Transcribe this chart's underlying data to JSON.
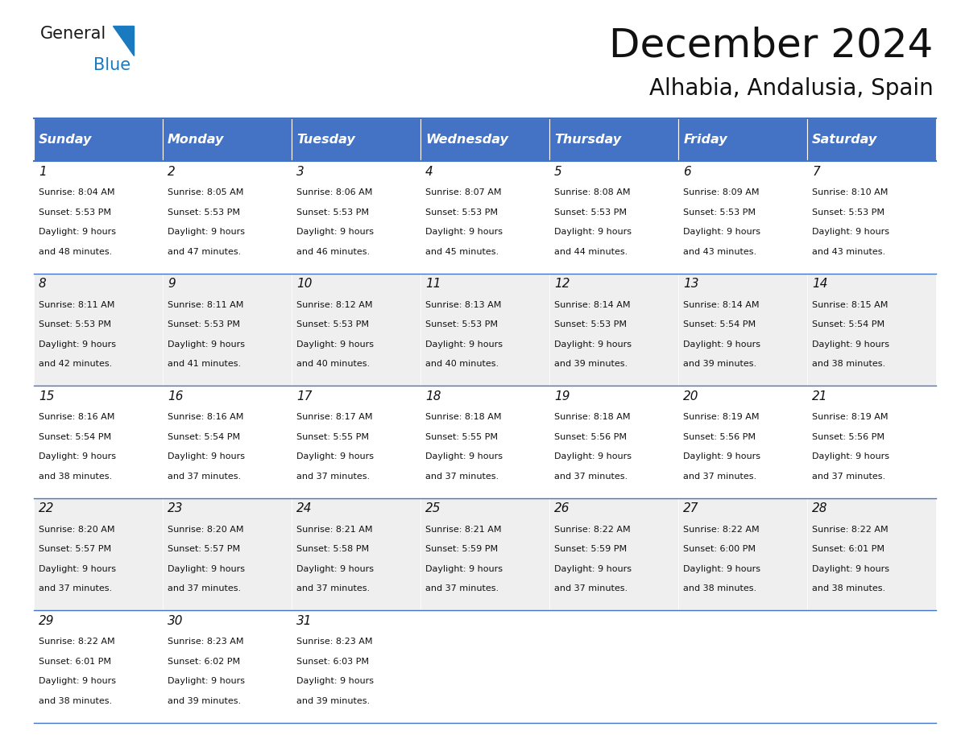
{
  "title": "December 2024",
  "subtitle": "Alhabia, Andalusia, Spain",
  "header_bg_color": "#4472C4",
  "header_text_color": "#FFFFFF",
  "border_color": "#4472C4",
  "day_headers": [
    "Sunday",
    "Monday",
    "Tuesday",
    "Wednesday",
    "Thursday",
    "Friday",
    "Saturday"
  ],
  "days_data": [
    {
      "day": 1,
      "col": 0,
      "row": 0,
      "sunrise": "8:04 AM",
      "sunset": "5:53 PM",
      "daylight": "9 hours and 48 minutes."
    },
    {
      "day": 2,
      "col": 1,
      "row": 0,
      "sunrise": "8:05 AM",
      "sunset": "5:53 PM",
      "daylight": "9 hours and 47 minutes."
    },
    {
      "day": 3,
      "col": 2,
      "row": 0,
      "sunrise": "8:06 AM",
      "sunset": "5:53 PM",
      "daylight": "9 hours and 46 minutes."
    },
    {
      "day": 4,
      "col": 3,
      "row": 0,
      "sunrise": "8:07 AM",
      "sunset": "5:53 PM",
      "daylight": "9 hours and 45 minutes."
    },
    {
      "day": 5,
      "col": 4,
      "row": 0,
      "sunrise": "8:08 AM",
      "sunset": "5:53 PM",
      "daylight": "9 hours and 44 minutes."
    },
    {
      "day": 6,
      "col": 5,
      "row": 0,
      "sunrise": "8:09 AM",
      "sunset": "5:53 PM",
      "daylight": "9 hours and 43 minutes."
    },
    {
      "day": 7,
      "col": 6,
      "row": 0,
      "sunrise": "8:10 AM",
      "sunset": "5:53 PM",
      "daylight": "9 hours and 43 minutes."
    },
    {
      "day": 8,
      "col": 0,
      "row": 1,
      "sunrise": "8:11 AM",
      "sunset": "5:53 PM",
      "daylight": "9 hours and 42 minutes."
    },
    {
      "day": 9,
      "col": 1,
      "row": 1,
      "sunrise": "8:11 AM",
      "sunset": "5:53 PM",
      "daylight": "9 hours and 41 minutes."
    },
    {
      "day": 10,
      "col": 2,
      "row": 1,
      "sunrise": "8:12 AM",
      "sunset": "5:53 PM",
      "daylight": "9 hours and 40 minutes."
    },
    {
      "day": 11,
      "col": 3,
      "row": 1,
      "sunrise": "8:13 AM",
      "sunset": "5:53 PM",
      "daylight": "9 hours and 40 minutes."
    },
    {
      "day": 12,
      "col": 4,
      "row": 1,
      "sunrise": "8:14 AM",
      "sunset": "5:53 PM",
      "daylight": "9 hours and 39 minutes."
    },
    {
      "day": 13,
      "col": 5,
      "row": 1,
      "sunrise": "8:14 AM",
      "sunset": "5:54 PM",
      "daylight": "9 hours and 39 minutes."
    },
    {
      "day": 14,
      "col": 6,
      "row": 1,
      "sunrise": "8:15 AM",
      "sunset": "5:54 PM",
      "daylight": "9 hours and 38 minutes."
    },
    {
      "day": 15,
      "col": 0,
      "row": 2,
      "sunrise": "8:16 AM",
      "sunset": "5:54 PM",
      "daylight": "9 hours and 38 minutes."
    },
    {
      "day": 16,
      "col": 1,
      "row": 2,
      "sunrise": "8:16 AM",
      "sunset": "5:54 PM",
      "daylight": "9 hours and 37 minutes."
    },
    {
      "day": 17,
      "col": 2,
      "row": 2,
      "sunrise": "8:17 AM",
      "sunset": "5:55 PM",
      "daylight": "9 hours and 37 minutes."
    },
    {
      "day": 18,
      "col": 3,
      "row": 2,
      "sunrise": "8:18 AM",
      "sunset": "5:55 PM",
      "daylight": "9 hours and 37 minutes."
    },
    {
      "day": 19,
      "col": 4,
      "row": 2,
      "sunrise": "8:18 AM",
      "sunset": "5:56 PM",
      "daylight": "9 hours and 37 minutes."
    },
    {
      "day": 20,
      "col": 5,
      "row": 2,
      "sunrise": "8:19 AM",
      "sunset": "5:56 PM",
      "daylight": "9 hours and 37 minutes."
    },
    {
      "day": 21,
      "col": 6,
      "row": 2,
      "sunrise": "8:19 AM",
      "sunset": "5:56 PM",
      "daylight": "9 hours and 37 minutes."
    },
    {
      "day": 22,
      "col": 0,
      "row": 3,
      "sunrise": "8:20 AM",
      "sunset": "5:57 PM",
      "daylight": "9 hours and 37 minutes."
    },
    {
      "day": 23,
      "col": 1,
      "row": 3,
      "sunrise": "8:20 AM",
      "sunset": "5:57 PM",
      "daylight": "9 hours and 37 minutes."
    },
    {
      "day": 24,
      "col": 2,
      "row": 3,
      "sunrise": "8:21 AM",
      "sunset": "5:58 PM",
      "daylight": "9 hours and 37 minutes."
    },
    {
      "day": 25,
      "col": 3,
      "row": 3,
      "sunrise": "8:21 AM",
      "sunset": "5:59 PM",
      "daylight": "9 hours and 37 minutes."
    },
    {
      "day": 26,
      "col": 4,
      "row": 3,
      "sunrise": "8:22 AM",
      "sunset": "5:59 PM",
      "daylight": "9 hours and 37 minutes."
    },
    {
      "day": 27,
      "col": 5,
      "row": 3,
      "sunrise": "8:22 AM",
      "sunset": "6:00 PM",
      "daylight": "9 hours and 38 minutes."
    },
    {
      "day": 28,
      "col": 6,
      "row": 3,
      "sunrise": "8:22 AM",
      "sunset": "6:01 PM",
      "daylight": "9 hours and 38 minutes."
    },
    {
      "day": 29,
      "col": 0,
      "row": 4,
      "sunrise": "8:22 AM",
      "sunset": "6:01 PM",
      "daylight": "9 hours and 38 minutes."
    },
    {
      "day": 30,
      "col": 1,
      "row": 4,
      "sunrise": "8:23 AM",
      "sunset": "6:02 PM",
      "daylight": "9 hours and 39 minutes."
    },
    {
      "day": 31,
      "col": 2,
      "row": 4,
      "sunrise": "8:23 AM",
      "sunset": "6:03 PM",
      "daylight": "9 hours and 39 minutes."
    }
  ],
  "num_rows": 5,
  "logo_color_general": "#1a1a1a",
  "logo_color_blue": "#1a7abf",
  "logo_triangle_color": "#1a7abf"
}
